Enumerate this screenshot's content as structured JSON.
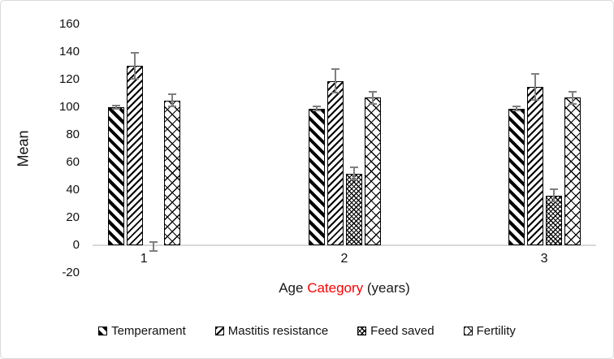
{
  "figure": {
    "background": "#ffffff",
    "border_color": "#d9d9d9"
  },
  "chart_data": {
    "type": "bar",
    "title": "",
    "categories": [
      "1",
      "2",
      "3"
    ],
    "series": [
      {
        "name": "Temperament",
        "values": [
          100,
          99,
          99
        ],
        "errors": [
          2,
          2,
          2
        ],
        "pattern": "diagonal-down-wide"
      },
      {
        "name": "Mastitis resistance",
        "values": [
          130,
          119,
          115
        ],
        "errors": [
          10,
          9,
          10
        ],
        "pattern": "diagonal-up-thin"
      },
      {
        "name": "Feed saved",
        "values": [
          -1,
          52,
          36
        ],
        "errors": [
          4,
          5,
          5
        ],
        "pattern": "dense-diamond"
      },
      {
        "name": "Fertility",
        "values": [
          105,
          107,
          107
        ],
        "errors": [
          5,
          5,
          5
        ],
        "pattern": "open-diamond"
      }
    ],
    "ylabel": "Mean",
    "xlabel_parts": [
      {
        "text": "Age ",
        "color": "#1a1a1a"
      },
      {
        "text": "Category",
        "color": "#ff0000"
      },
      {
        "text": " (years)",
        "color": "#1a1a1a"
      }
    ],
    "ylim": [
      -20,
      160
    ],
    "ytick_step": 20,
    "yticks": [
      "-20",
      "0",
      "20",
      "40",
      "60",
      "80",
      "100",
      "120",
      "140",
      "160"
    ],
    "grid": false,
    "legend_position": "bottom",
    "error_bar_color": "#7f7f7f",
    "axis_line_color": "#d9d9d9"
  }
}
